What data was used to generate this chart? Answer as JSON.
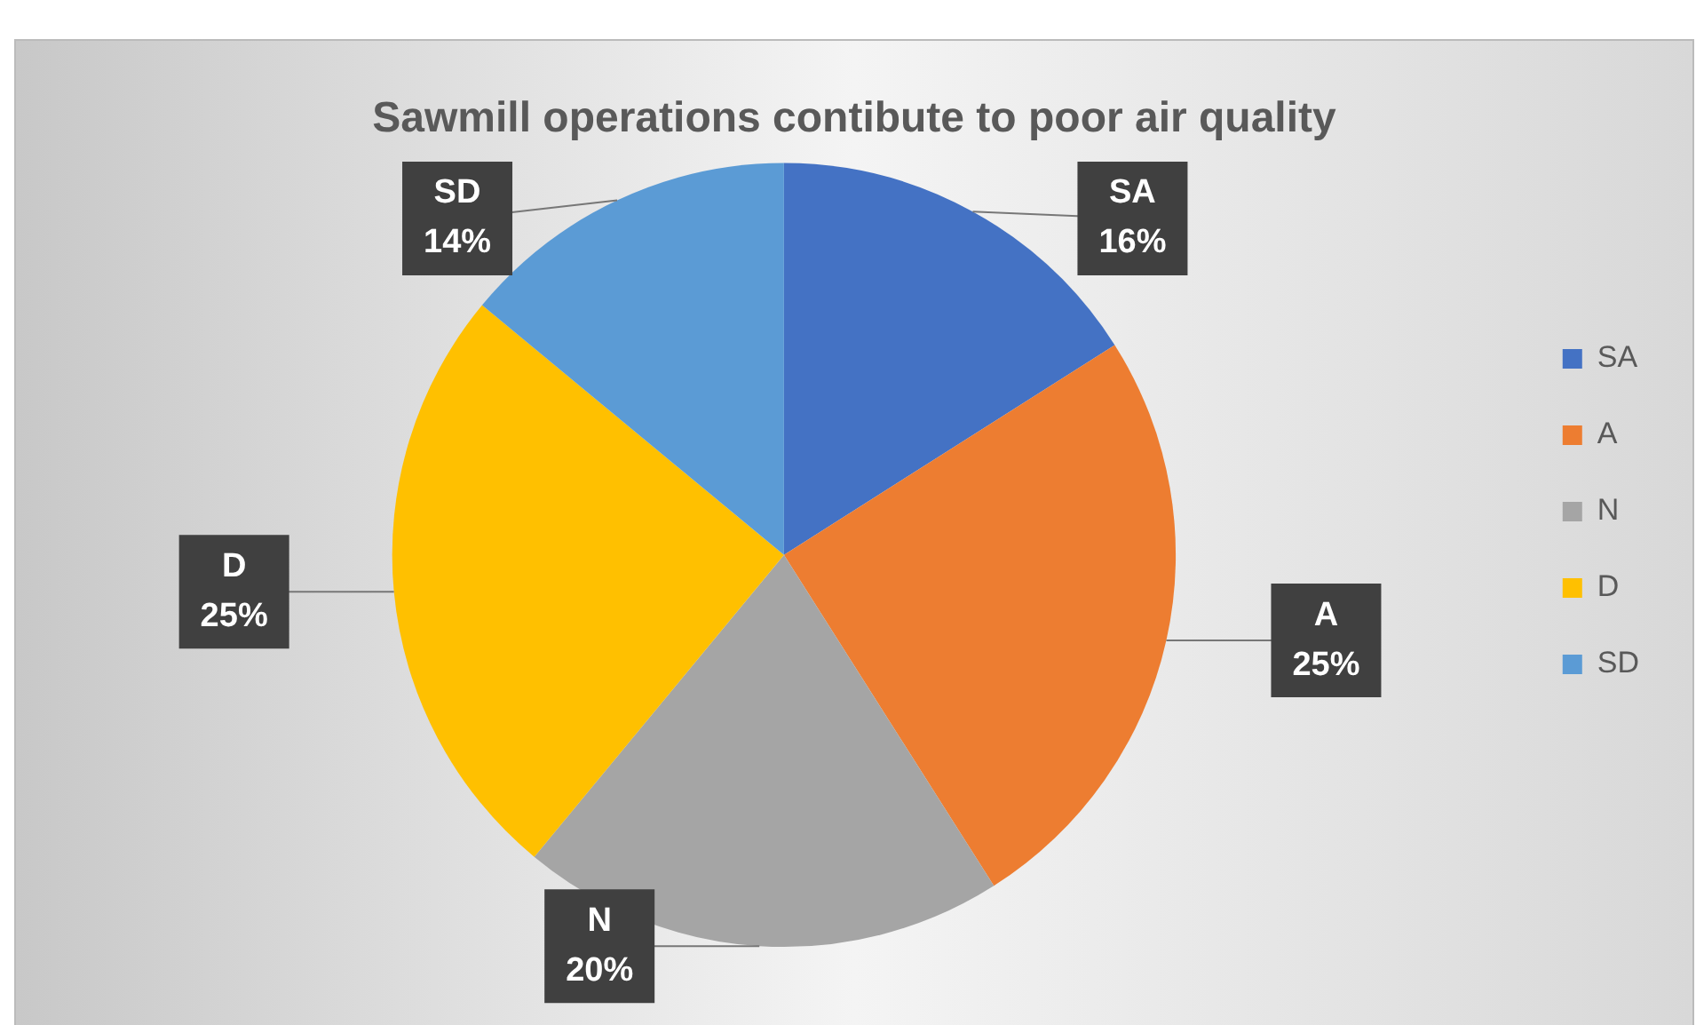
{
  "chart_data": {
    "type": "pie",
    "title": "Sawmill operations contibute to poor air quality",
    "categories": [
      "SA",
      "A",
      "N",
      "D",
      "SD"
    ],
    "values": [
      16,
      25,
      20,
      25,
      14
    ],
    "colors": [
      "#4472c4",
      "#ed7d31",
      "#a5a5a5",
      "#ffc000",
      "#5b9bd5"
    ],
    "value_labels": [
      "16%",
      "25%",
      "20%",
      "25%",
      "14%"
    ],
    "legend": "right"
  }
}
